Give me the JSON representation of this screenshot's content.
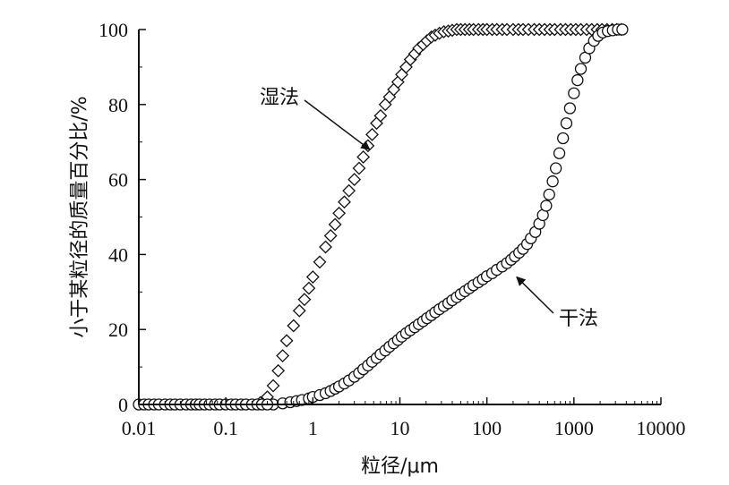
{
  "chart_data": {
    "type": "scatter",
    "xscale": "log",
    "xlim": [
      0.01,
      10000
    ],
    "ylim": [
      0,
      100
    ],
    "x_ticks": [
      "0.01",
      "0.1",
      "1",
      "10",
      "100",
      "1000",
      "10000"
    ],
    "y_ticks": [
      "0",
      "20",
      "40",
      "60",
      "80",
      "100"
    ],
    "xlabel": "粒径/μm",
    "ylabel": "小于某粒径的质量百分比/%",
    "grid": false,
    "series": [
      {
        "name": "湿法",
        "marker": "diamond",
        "x": [
          0.25,
          0.3,
          0.35,
          0.4,
          0.45,
          0.5,
          0.6,
          0.7,
          0.8,
          0.9,
          1.0,
          1.2,
          1.4,
          1.6,
          1.8,
          2.0,
          2.3,
          2.6,
          3.0,
          3.4,
          3.8,
          4.3,
          4.8,
          5.4,
          6.0,
          6.8,
          7.6,
          8.5,
          9.5,
          10.5,
          11.8,
          13.2,
          14.8,
          16.5,
          18.5,
          20.5,
          23,
          25.5,
          28.5,
          32,
          36,
          40,
          45,
          50,
          56,
          63,
          70,
          80,
          90,
          100,
          115,
          130,
          150,
          170,
          200,
          230,
          260,
          300,
          350,
          400,
          460,
          530,
          600,
          700,
          800,
          920,
          1050,
          1200,
          1400,
          1600,
          1850,
          2100,
          2400,
          2750,
          3100,
          3500
        ],
        "y": [
          0.5,
          2,
          5,
          9,
          13,
          17,
          21,
          25,
          28,
          31,
          34,
          38,
          42,
          45,
          48,
          51,
          54,
          57,
          60,
          63,
          66,
          69,
          72,
          75,
          77,
          80,
          82,
          84,
          86,
          88,
          90,
          92,
          93.5,
          95,
          96,
          97,
          98,
          98.5,
          99,
          99.4,
          99.6,
          99.8,
          100,
          100,
          100,
          100,
          100,
          100,
          100,
          100,
          100,
          100,
          100,
          100,
          100,
          100,
          100,
          100,
          100,
          100,
          100,
          100,
          100,
          100,
          100,
          100,
          100,
          100,
          100,
          100,
          100,
          100,
          100,
          100,
          100,
          100
        ]
      },
      {
        "name": "干法",
        "marker": "circle",
        "x": [
          0.35,
          0.45,
          0.55,
          0.65,
          0.75,
          0.9,
          1.0,
          1.2,
          1.4,
          1.6,
          1.8,
          2.0,
          2.3,
          2.6,
          3.0,
          3.4,
          3.8,
          4.3,
          4.8,
          5.4,
          6.0,
          6.8,
          7.6,
          8.5,
          9.5,
          10.5,
          11.8,
          13.2,
          14.8,
          16.5,
          18.5,
          20.5,
          23,
          25.5,
          28.5,
          32,
          36,
          40,
          45,
          50,
          56,
          63,
          70,
          80,
          90,
          100,
          115,
          130,
          150,
          170,
          190,
          210,
          235,
          260,
          290,
          320,
          360,
          400,
          440,
          480,
          520,
          570,
          620,
          680,
          750,
          820,
          900,
          1000,
          1100,
          1200,
          1350,
          1500,
          1700,
          1900,
          2150,
          2450,
          2800,
          3200,
          3600
        ],
        "y": [
          0,
          0.3,
          0.6,
          0.9,
          1.2,
          1.6,
          2,
          2.5,
          3,
          3.6,
          4.2,
          4.8,
          5.6,
          6.4,
          7.4,
          8.4,
          9.4,
          10.4,
          11.4,
          12.4,
          13.4,
          14.4,
          15.4,
          16.3,
          17.2,
          18.1,
          19,
          19.8,
          20.6,
          21.4,
          22.2,
          23,
          23.8,
          24.6,
          25.4,
          26.2,
          27,
          27.8,
          28.6,
          29.4,
          30.2,
          31,
          31.8,
          32.6,
          33.4,
          34.2,
          35,
          35.9,
          36.8,
          37.7,
          38.6,
          39.5,
          40.5,
          41.5,
          42.8,
          44.3,
          46,
          48.2,
          50.5,
          53,
          56,
          59.5,
          63,
          67,
          71,
          75,
          79,
          83,
          86.5,
          89.5,
          92.5,
          95,
          97,
          98.3,
          99.2,
          99.6,
          99.8,
          100,
          100
        ]
      },
      {
        "name": "",
        "marker": "circle",
        "x": [
          0.01,
          0.0115,
          0.013,
          0.015,
          0.017,
          0.02,
          0.023,
          0.026,
          0.03,
          0.035,
          0.04,
          0.045,
          0.05,
          0.057,
          0.065,
          0.075,
          0.085,
          0.1,
          0.115,
          0.13,
          0.15,
          0.17,
          0.2,
          0.23,
          0.26,
          0.3
        ],
        "y": [
          0,
          0,
          0,
          0,
          0,
          0,
          0,
          0,
          0,
          0,
          0,
          0,
          0,
          0,
          0,
          0,
          0,
          0,
          0,
          0,
          0,
          0,
          0,
          0,
          0,
          0
        ]
      }
    ],
    "annotations": [
      {
        "text": "湿法",
        "target_series": "湿法",
        "target_x": 4.5,
        "target_y": 68
      },
      {
        "text": "干法",
        "target_series": "干法",
        "target_x": 220,
        "target_y": 34
      }
    ]
  }
}
